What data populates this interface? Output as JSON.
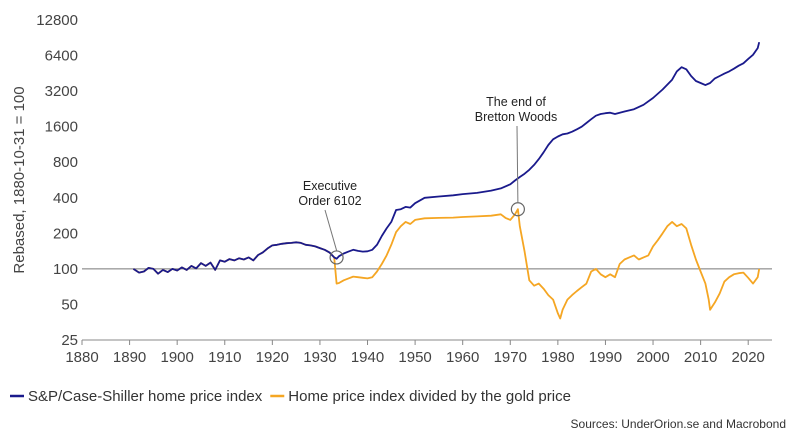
{
  "chart_data": {
    "type": "line",
    "title": "",
    "xlabel": "",
    "ylabel": "Rebased, 1880-10-31 = 100",
    "y_scale": "log2",
    "ylim": [
      25,
      12800
    ],
    "xlim": [
      1880,
      2025
    ],
    "x_ticks": [
      1880,
      1890,
      1900,
      1910,
      1920,
      1930,
      1940,
      1950,
      1960,
      1970,
      1980,
      1990,
      2000,
      2010,
      2020
    ],
    "y_ticks": [
      25,
      50,
      100,
      200,
      400,
      800,
      1600,
      3200,
      6400,
      12800
    ],
    "reference_line": 100,
    "grid": false,
    "legend_position": "bottom-left",
    "series": [
      {
        "name": "S&P/Case-Shiller home price index",
        "color": "#1a1a8c",
        "x": [
          1890.8,
          1892,
          1893,
          1894,
          1895,
          1896,
          1897,
          1898,
          1899,
          1900,
          1901,
          1902,
          1903,
          1904,
          1905,
          1906,
          1907,
          1908,
          1909,
          1910,
          1911,
          1912,
          1913,
          1914,
          1915,
          1916,
          1917,
          1918,
          1919,
          1920,
          1921,
          1922,
          1923,
          1924,
          1925,
          1926,
          1927,
          1928,
          1929,
          1930,
          1931,
          1932,
          1933,
          1933.5,
          1934,
          1935,
          1936,
          1937,
          1938,
          1939,
          1940,
          1941,
          1942,
          1943,
          1944,
          1945,
          1946,
          1947,
          1948,
          1949,
          1950,
          1952,
          1955,
          1958,
          1960,
          1963,
          1966,
          1968,
          1970,
          1971,
          1972,
          1973,
          1974,
          1975,
          1976,
          1977,
          1978,
          1979,
          1980,
          1981,
          1982,
          1983,
          1984,
          1985,
          1986,
          1987,
          1988,
          1989,
          1990,
          1991,
          1992,
          1994,
          1996,
          1998,
          2000,
          2002,
          2004,
          2005,
          2006,
          2007,
          2008,
          2009,
          2010,
          2011,
          2012,
          2013,
          2014,
          2015,
          2016,
          2017,
          2018,
          2019,
          2020,
          2021,
          2022,
          2022.3
        ],
        "values": [
          100,
          93,
          95,
          102,
          100,
          91,
          98,
          94,
          100,
          97,
          103,
          98,
          106,
          101,
          112,
          106,
          113,
          98,
          118,
          115,
          121,
          118,
          123,
          120,
          125,
          118,
          131,
          138,
          149,
          158,
          160,
          163,
          165,
          166,
          168,
          166,
          160,
          158,
          155,
          150,
          145,
          138,
          125,
          122,
          128,
          135,
          140,
          145,
          142,
          140,
          141,
          145,
          160,
          190,
          220,
          250,
          315,
          320,
          335,
          330,
          360,
          400,
          410,
          420,
          430,
          440,
          460,
          480,
          520,
          560,
          600,
          640,
          690,
          760,
          850,
          970,
          1120,
          1250,
          1320,
          1380,
          1400,
          1450,
          1520,
          1600,
          1720,
          1850,
          1980,
          2050,
          2080,
          2100,
          2050,
          2150,
          2250,
          2450,
          2800,
          3300,
          4000,
          4700,
          5100,
          4900,
          4300,
          3900,
          3750,
          3600,
          3750,
          4100,
          4300,
          4500,
          4700,
          4950,
          5250,
          5500,
          6000,
          6500,
          7400,
          8300
        ]
      },
      {
        "name": "Home price index divided by the gold price",
        "color": "#f5a623",
        "x": [
          1890.8,
          1892,
          1893,
          1894,
          1895,
          1896,
          1897,
          1898,
          1899,
          1900,
          1901,
          1902,
          1903,
          1904,
          1905,
          1906,
          1907,
          1908,
          1909,
          1910,
          1911,
          1912,
          1913,
          1914,
          1915,
          1916,
          1917,
          1918,
          1919,
          1920,
          1921,
          1922,
          1923,
          1924,
          1925,
          1926,
          1927,
          1928,
          1929,
          1930,
          1931,
          1932,
          1933,
          1933.5,
          1934,
          1935,
          1936,
          1937,
          1938,
          1939,
          1940,
          1941,
          1942,
          1943,
          1944,
          1945,
          1946,
          1947,
          1948,
          1949,
          1950,
          1952,
          1955,
          1958,
          1960,
          1963,
          1966,
          1968,
          1969,
          1970,
          1971,
          1971.6,
          1972,
          1973,
          1974,
          1975,
          1976,
          1977,
          1978,
          1979,
          1980,
          1980.5,
          1981,
          1982,
          1983,
          1984,
          1985,
          1986,
          1987,
          1988,
          1989,
          1990,
          1991,
          1992,
          1993,
          1994,
          1995,
          1996,
          1997,
          1998,
          1999,
          2000,
          2001,
          2002,
          2003,
          2004,
          2005,
          2006,
          2007,
          2008,
          2009,
          2010,
          2011,
          2011.7,
          2012,
          2013,
          2014,
          2015,
          2016,
          2017,
          2018,
          2019,
          2020,
          2021,
          2022,
          2022.3
        ],
        "values": [
          100,
          93,
          95,
          102,
          100,
          91,
          98,
          94,
          100,
          97,
          103,
          98,
          106,
          101,
          112,
          106,
          113,
          98,
          118,
          115,
          121,
          118,
          123,
          120,
          125,
          118,
          131,
          138,
          149,
          158,
          160,
          163,
          165,
          166,
          168,
          166,
          160,
          158,
          155,
          150,
          145,
          138,
          125,
          75,
          76,
          80,
          83,
          86,
          85,
          84,
          83,
          85,
          95,
          110,
          130,
          160,
          205,
          230,
          250,
          240,
          260,
          268,
          270,
          272,
          275,
          278,
          282,
          290,
          270,
          260,
          290,
          320,
          230,
          140,
          80,
          72,
          75,
          68,
          60,
          55,
          42,
          38,
          45,
          55,
          60,
          65,
          70,
          75,
          95,
          100,
          90,
          85,
          90,
          85,
          110,
          120,
          125,
          130,
          120,
          125,
          130,
          155,
          175,
          200,
          230,
          250,
          230,
          240,
          220,
          160,
          120,
          95,
          75,
          55,
          45,
          52,
          62,
          78,
          85,
          90,
          92,
          93,
          84,
          75,
          85,
          100
        ]
      }
    ],
    "annotations": [
      {
        "text_lines": [
          "Executive",
          "Order 6102"
        ],
        "x": 1933.5,
        "y": 125
      },
      {
        "text_lines": [
          "The end of",
          "Bretton Woods"
        ],
        "x": 1971.6,
        "y": 320
      }
    ]
  },
  "source_text": "Sources: UnderOrion.se and Macrobond"
}
